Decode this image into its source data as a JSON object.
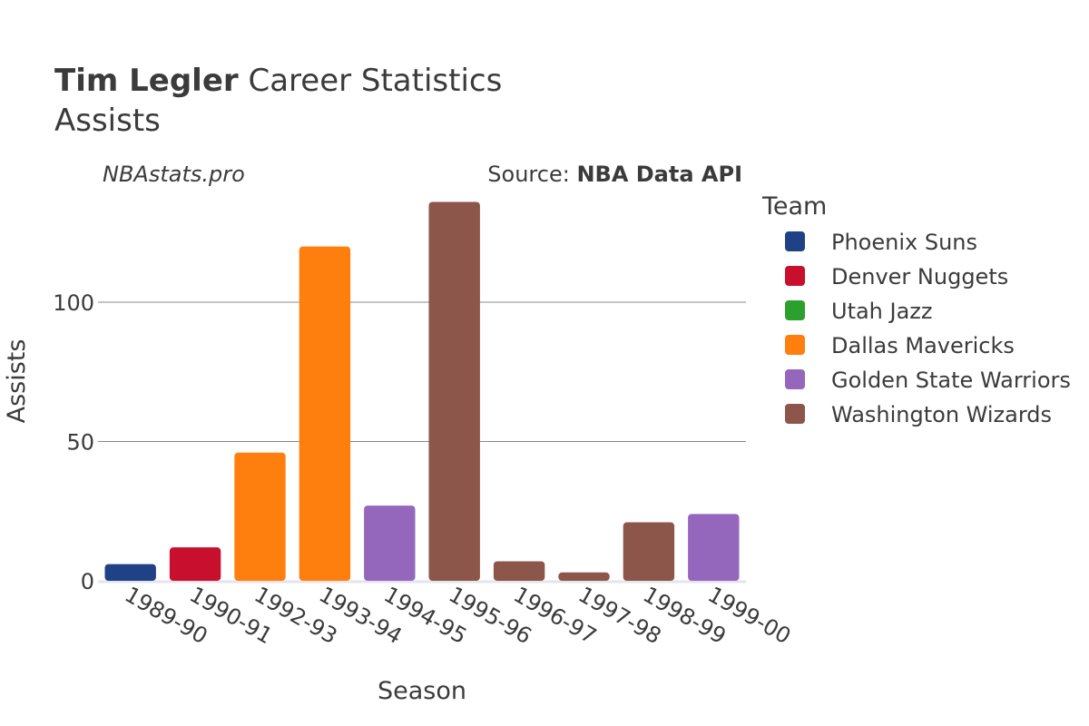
{
  "title": {
    "player": "Tim Legler",
    "rest": " Career Statistics",
    "stat": "Assists"
  },
  "watermark": "NBAstats.pro",
  "source": {
    "prefix": "Source: ",
    "name": "NBA Data API"
  },
  "legend": {
    "title": "Team",
    "items": [
      {
        "label": "Phoenix Suns",
        "color": "#1f4287"
      },
      {
        "label": "Denver Nuggets",
        "color": "#c8102e"
      },
      {
        "label": "Utah Jazz",
        "color": "#2ca02c"
      },
      {
        "label": "Dallas Mavericks",
        "color": "#ff7f0e"
      },
      {
        "label": "Golden State Warriors",
        "color": "#9467bd"
      },
      {
        "label": "Washington Wizards",
        "color": "#8c564b"
      }
    ]
  },
  "chart_data": {
    "type": "bar",
    "title": "Tim Legler Career Statistics",
    "subtitle": "Assists",
    "xlabel": "Season",
    "ylabel": "Assists",
    "ylim": [
      0,
      140
    ],
    "yticks": [
      0,
      50,
      100
    ],
    "grid": true,
    "legend_position": "right",
    "categories": [
      "1989-90",
      "1990-91",
      "1992-93",
      "1993-94",
      "1994-95",
      "1995-96",
      "1996-97",
      "1997-98",
      "1998-99",
      "1999-00"
    ],
    "values": [
      6,
      12,
      46,
      120,
      27,
      136,
      7,
      3,
      21,
      24
    ],
    "teams": [
      "Phoenix Suns",
      "Denver Nuggets",
      "Dallas Mavericks",
      "Dallas Mavericks",
      "Golden State Warriors",
      "Washington Wizards",
      "Washington Wizards",
      "Washington Wizards",
      "Washington Wizards",
      "Golden State Warriors"
    ]
  }
}
